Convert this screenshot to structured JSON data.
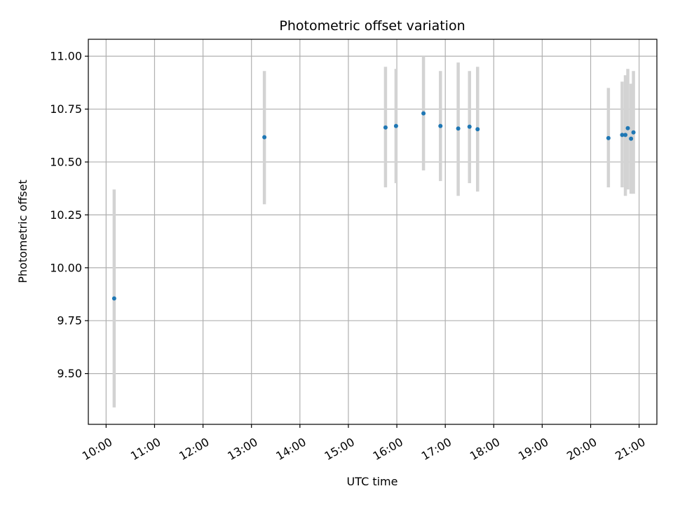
{
  "chart_data": {
    "type": "scatter",
    "title": "Photometric offset variation",
    "xlabel": "UTC time",
    "ylabel": "Photometric offset",
    "x_ticks": [
      "10:00",
      "11:00",
      "12:00",
      "13:00",
      "14:00",
      "15:00",
      "16:00",
      "17:00",
      "18:00",
      "19:00",
      "20:00",
      "21:00"
    ],
    "y_ticks": [
      "9.50",
      "9.75",
      "10.00",
      "10.25",
      "10.50",
      "10.75",
      "11.00"
    ],
    "xlim": [
      "09:38",
      "21:22"
    ],
    "ylim": [
      9.26,
      11.08
    ],
    "grid": true,
    "colors": {
      "point": "#1f77b4",
      "errorbar": "#d3d3d3",
      "grid": "#b0b0b0"
    },
    "points": [
      {
        "x": "10:10",
        "y": 9.855,
        "ylo": 9.34,
        "yhi": 10.37
      },
      {
        "x": "13:16",
        "y": 10.617,
        "ylo": 10.3,
        "yhi": 10.93
      },
      {
        "x": "15:46",
        "y": 10.663,
        "ylo": 10.38,
        "yhi": 10.95
      },
      {
        "x": "15:59",
        "y": 10.67,
        "ylo": 10.4,
        "yhi": 10.94
      },
      {
        "x": "16:33",
        "y": 10.73,
        "ylo": 10.46,
        "yhi": 11.0
      },
      {
        "x": "16:54",
        "y": 10.67,
        "ylo": 10.41,
        "yhi": 10.93
      },
      {
        "x": "17:16",
        "y": 10.658,
        "ylo": 10.34,
        "yhi": 10.97
      },
      {
        "x": "17:30",
        "y": 10.667,
        "ylo": 10.4,
        "yhi": 10.93
      },
      {
        "x": "17:40",
        "y": 10.655,
        "ylo": 10.36,
        "yhi": 10.95
      },
      {
        "x": "20:22",
        "y": 10.613,
        "ylo": 10.38,
        "yhi": 10.85
      },
      {
        "x": "20:39",
        "y": 10.628,
        "ylo": 10.38,
        "yhi": 10.88
      },
      {
        "x": "20:43",
        "y": 10.628,
        "ylo": 10.34,
        "yhi": 10.91
      },
      {
        "x": "20:46",
        "y": 10.66,
        "ylo": 10.37,
        "yhi": 10.94
      },
      {
        "x": "20:50",
        "y": 10.61,
        "ylo": 10.35,
        "yhi": 10.87
      },
      {
        "x": "20:53",
        "y": 10.64,
        "ylo": 10.35,
        "yhi": 10.93
      }
    ]
  }
}
